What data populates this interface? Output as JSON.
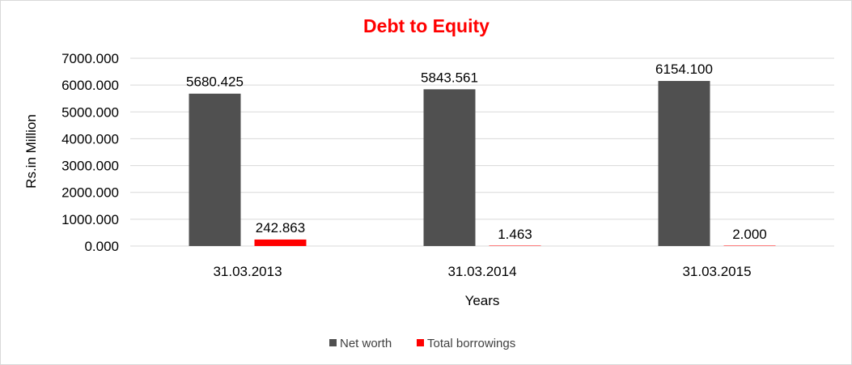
{
  "chart_data": {
    "type": "bar",
    "title": "Debt to Equity",
    "xlabel": "Years",
    "ylabel": "Rs.in Million",
    "categories": [
      "31.03.2013",
      "31.03.2014",
      "31.03.2015"
    ],
    "series": [
      {
        "name": "Net worth",
        "values": [
          5680.425,
          5843.561,
          6154.1
        ],
        "labels": [
          "5680.425",
          "5843.561",
          "6154.100"
        ],
        "color": "#505050"
      },
      {
        "name": "Total borrowings",
        "values": [
          242.863,
          1.463,
          2.0
        ],
        "labels": [
          "242.863",
          "1.463",
          "2.000"
        ],
        "color": "#ff0000"
      }
    ],
    "ylim": [
      0,
      7000
    ],
    "yticks": [
      {
        "value": 0,
        "label": "0.000"
      },
      {
        "value": 1000,
        "label": "1000.000"
      },
      {
        "value": 2000,
        "label": "2000.000"
      },
      {
        "value": 3000,
        "label": "3000.000"
      },
      {
        "value": 4000,
        "label": "4000.000"
      },
      {
        "value": 5000,
        "label": "5000.000"
      },
      {
        "value": 6000,
        "label": "6000.000"
      },
      {
        "value": 7000,
        "label": "7000.000"
      }
    ],
    "grid": true,
    "legend_position": "bottom",
    "title_color": "#ff0000"
  }
}
